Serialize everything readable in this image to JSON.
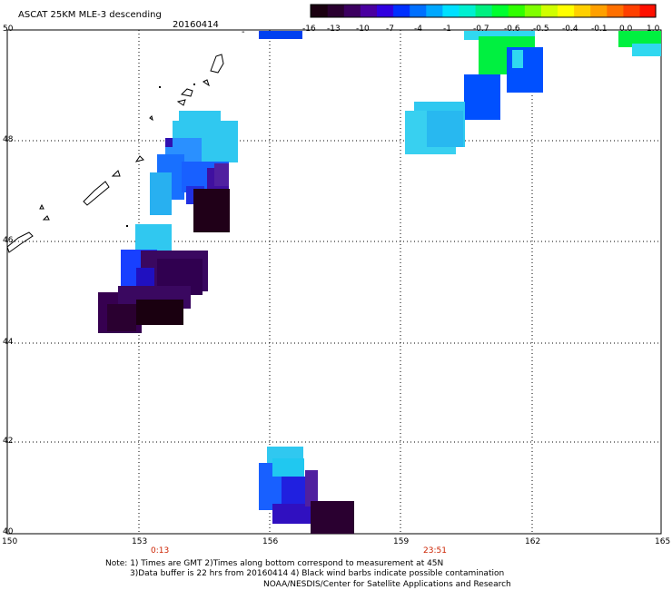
{
  "header": {
    "title": "ASCAT 25KM MLE-3 descending",
    "date": "20160414",
    "dash": "-"
  },
  "colorbar": {
    "labels": [
      "-16",
      "-13",
      "-10",
      "-7",
      "-4",
      "-1",
      "-0.7",
      "-0.6",
      "-0.5",
      "-0.4",
      "-0.1",
      "0.0",
      "1.0"
    ],
    "colors": [
      "#1a0010",
      "#2a0030",
      "#3c0060",
      "#4a00a0",
      "#3000e0",
      "#0030ff",
      "#0070ff",
      "#00a8ff",
      "#00e0ff",
      "#00f0d0",
      "#00f080",
      "#00ff30",
      "#30ff00",
      "#80ff00",
      "#d0ff00",
      "#ffff00",
      "#ffd000",
      "#ffa000",
      "#ff7000",
      "#ff4000",
      "#ff1000"
    ]
  },
  "map": {
    "lat_labels": [
      "50",
      "48",
      "46",
      "44",
      "42",
      "40"
    ],
    "lon_labels": [
      "150",
      "153",
      "156",
      "159",
      "162",
      "165"
    ],
    "time_labels": [
      "0:13",
      "23:51"
    ]
  },
  "footer": {
    "line1": "Note: 1) Times are GMT 2)Times along bottom correspond to measurement at 45N",
    "line2": "3)Data buffer is 22 hrs from 20160414 4) Black wind barbs indicate possible contamination",
    "line3": "NOAA/NESDIS/Center for Satellite Applications and Research"
  }
}
